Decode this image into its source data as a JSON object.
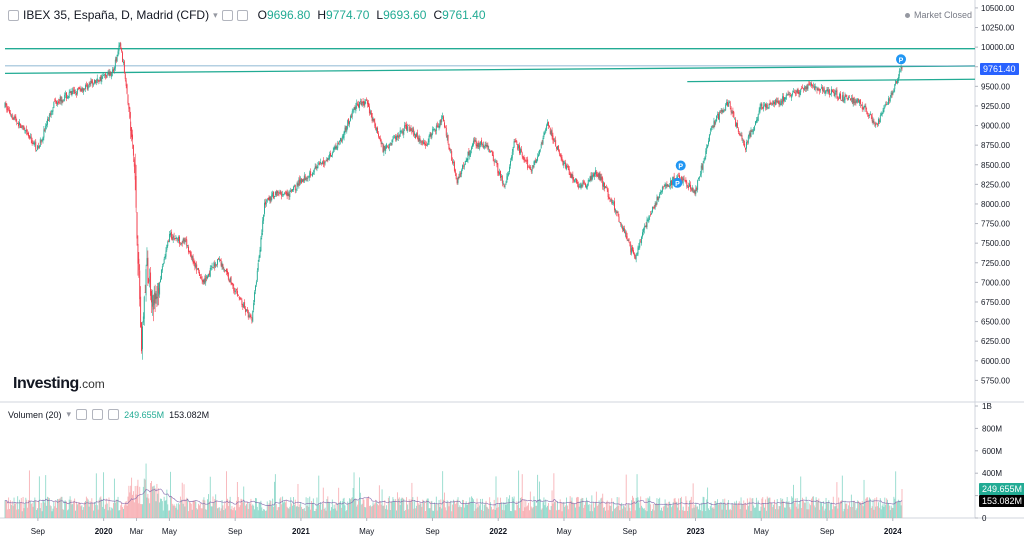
{
  "header": {
    "title": "IBEX 35, España, D, Madrid (CFD)",
    "open_label": "O",
    "open": "9696.80",
    "high_label": "H",
    "high": "9774.70",
    "low_label": "L",
    "low": "9693.60",
    "close_label": "C",
    "close": "9761.40"
  },
  "market_status": "Market Closed",
  "logo": {
    "brand": "Investing",
    "suffix": ".com"
  },
  "volume_header": {
    "label": "Volumen (20)",
    "value_1": "249.655M",
    "value_2": "153.082M"
  },
  "price_tag": {
    "label": "9761.40",
    "color": "#2962ff"
  },
  "volume_tags": [
    {
      "label": "249.655M",
      "color": "#22ab94"
    },
    {
      "label": "153.082M",
      "color": "#000000"
    }
  ],
  "colors": {
    "up": "#22ab94",
    "down": "#f23645",
    "trendline": "#22ab94",
    "current_line": "#6aa0c4",
    "marker": "#2196f3"
  },
  "chart_data": {
    "type": "candlestick",
    "price_axis": {
      "ylim": [
        5500,
        10550
      ],
      "ticks": [
        10500,
        10250,
        10000,
        9750,
        9500,
        9250,
        9000,
        8750,
        8500,
        8250,
        8000,
        7750,
        7500,
        7250,
        7000,
        6750,
        6500,
        6250,
        6000,
        5750
      ],
      "tick_labels": [
        "10500.00",
        "10250.00",
        "10000.00",
        "9750.00",
        "9500.00",
        "9250.00",
        "9000.00",
        "8750.00",
        "8500.00",
        "8250.00",
        "8000.00",
        "7750.00",
        "7500.00",
        "7250.00",
        "7000.00",
        "6750.00",
        "6500.00",
        "6250.00",
        "6000.00",
        "5750.00"
      ]
    },
    "volume_axis": {
      "ylim": [
        0,
        1000
      ],
      "ticks": [
        1000,
        800,
        600,
        400,
        200,
        0
      ],
      "tick_labels": [
        "1B",
        "800M",
        "600M",
        "400M",
        "200M",
        "0"
      ]
    },
    "x_axis": {
      "labels": [
        "Sep",
        "2020",
        "Mar",
        "May",
        "Sep",
        "2021",
        "May",
        "Sep",
        "2022",
        "May",
        "Sep",
        "2023",
        "May",
        "Sep",
        "2024"
      ],
      "bold": [
        false,
        true,
        false,
        false,
        false,
        true,
        false,
        false,
        true,
        false,
        false,
        true,
        false,
        false,
        true
      ],
      "months_from_start": [
        2,
        6,
        8,
        10,
        14,
        18,
        22,
        26,
        30,
        34,
        38,
        42,
        46,
        50,
        54
      ]
    },
    "x_range_months": [
      0,
      59
    ],
    "price_path": [
      [
        0,
        9250
      ],
      [
        2,
        8700
      ],
      [
        3,
        9300
      ],
      [
        4,
        9400
      ],
      [
        5,
        9500
      ],
      [
        6.6,
        9700
      ],
      [
        7.0,
        10050
      ],
      [
        7.4,
        9500
      ],
      [
        7.9,
        8400
      ],
      [
        8.3,
        6200
      ],
      [
        8.6,
        7200
      ],
      [
        9.1,
        6700
      ],
      [
        10.0,
        7600
      ],
      [
        11.0,
        7500
      ],
      [
        12.0,
        7000
      ],
      [
        13.0,
        7300
      ],
      [
        14.0,
        6900
      ],
      [
        15.0,
        6500
      ],
      [
        15.8,
        8000
      ],
      [
        16.5,
        8150
      ],
      [
        17.2,
        8100
      ],
      [
        18.0,
        8300
      ],
      [
        19.5,
        8550
      ],
      [
        20.5,
        8850
      ],
      [
        21.3,
        9250
      ],
      [
        22.0,
        9300
      ],
      [
        23.0,
        8700
      ],
      [
        24.5,
        9000
      ],
      [
        25.5,
        8750
      ],
      [
        26.6,
        9100
      ],
      [
        27.5,
        8300
      ],
      [
        28.5,
        8800
      ],
      [
        29.5,
        8700
      ],
      [
        30.4,
        8200
      ],
      [
        31.0,
        8800
      ],
      [
        32.0,
        8400
      ],
      [
        33.0,
        9000
      ],
      [
        34.0,
        8500
      ],
      [
        35.0,
        8200
      ],
      [
        36.0,
        8400
      ],
      [
        37.0,
        8000
      ],
      [
        38.3,
        7300
      ],
      [
        39.0,
        7750
      ],
      [
        40.0,
        8200
      ],
      [
        41.0,
        8350
      ],
      [
        42.0,
        8150
      ],
      [
        43.0,
        9000
      ],
      [
        44.0,
        9300
      ],
      [
        45.0,
        8700
      ],
      [
        46.0,
        9250
      ],
      [
        47.0,
        9300
      ],
      [
        48.0,
        9400
      ],
      [
        49.0,
        9500
      ],
      [
        50.0,
        9450
      ],
      [
        51.0,
        9350
      ],
      [
        52.0,
        9300
      ],
      [
        53.0,
        9000
      ],
      [
        53.8,
        9350
      ],
      [
        54.6,
        9761
      ]
    ],
    "trendlines": [
      {
        "points": [
          [
            0,
            9980
          ],
          [
            59,
            9980
          ]
        ]
      },
      {
        "points": [
          [
            0,
            9665
          ],
          [
            59,
            9760
          ]
        ]
      },
      {
        "points": [
          [
            41.5,
            9560
          ],
          [
            59,
            9590
          ]
        ]
      }
    ],
    "current_price": 9761.4,
    "markers": [
      {
        "label": "P",
        "x": 40.9,
        "y": 8270
      },
      {
        "label": "P",
        "x": 41.1,
        "y": 8490
      },
      {
        "label": "P",
        "x": 54.5,
        "y": 9845
      }
    ],
    "volume_avg_level": 150
  }
}
